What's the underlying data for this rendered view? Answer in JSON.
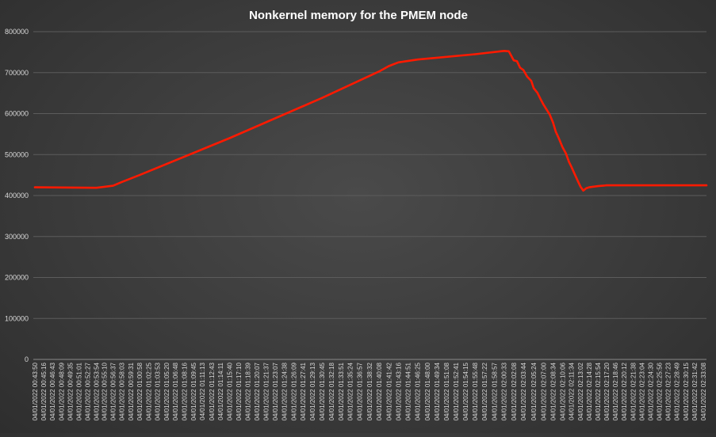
{
  "chart_data": {
    "type": "line",
    "title": "Nonkernel memory for the PMEM node",
    "xlabel": "",
    "ylabel": "",
    "ylim": [
      0,
      800000
    ],
    "y_ticks": [
      0,
      100000,
      200000,
      300000,
      400000,
      500000,
      600000,
      700000,
      800000
    ],
    "y_tick_labels": [
      "0",
      "100000",
      "200000",
      "300000",
      "400000",
      "500000",
      "600000",
      "700000",
      "800000"
    ],
    "x_tick_labels": [
      "04/01/2022 00:43:50",
      "04/01/2022 00:45:16",
      "04/01/2022 00:46:43",
      "04/01/2022 00:48:09",
      "04/01/2022 00:49:35",
      "04/01/2022 00:51:01",
      "04/01/2022 00:52:27",
      "04/01/2022 00:53:54",
      "04/01/2022 00:55:10",
      "04/01/2022 00:56:37",
      "04/01/2022 00:58:03",
      "04/01/2022 00:59:31",
      "04/01/2022 01:00:58",
      "04/01/2022 01:02:25",
      "04/01/2022 01:03:53",
      "04/01/2022 01:05:20",
      "04/01/2022 01:06:48",
      "04/01/2022 01:08:16",
      "04/01/2022 01:09:45",
      "04/01/2022 01:11:13",
      "04/01/2022 01:12:43",
      "04/01/2022 01:14:11",
      "04/01/2022 01:15:40",
      "04/01/2022 01:17:10",
      "04/01/2022 01:18:39",
      "04/01/2022 01:20:07",
      "04/01/2022 01:21:37",
      "04/01/2022 01:23:07",
      "04/01/2022 01:24:38",
      "04/01/2022 01:26:09",
      "04/01/2022 01:27:41",
      "04/01/2022 01:29:13",
      "04/01/2022 01:30:45",
      "04/01/2022 01:32:18",
      "04/01/2022 01:33:51",
      "04/01/2022 01:35:24",
      "04/01/2022 01:36:57",
      "04/01/2022 01:38:32",
      "04/01/2022 01:40:08",
      "04/01/2022 01:41:42",
      "04/01/2022 01:43:16",
      "04/01/2022 01:44:51",
      "04/01/2022 01:46:25",
      "04/01/2022 01:48:00",
      "04/01/2022 01:49:34",
      "04/01/2022 01:51:08",
      "04/01/2022 01:52:41",
      "04/01/2022 01:54:15",
      "04/01/2022 01:55:48",
      "04/01/2022 01:57:22",
      "04/01/2022 01:58:57",
      "04/01/2022 02:00:33",
      "04/01/2022 02:02:08",
      "04/01/2022 02:03:44",
      "04/01/2022 02:05:24",
      "04/01/2022 02:07:00",
      "04/01/2022 02:08:34",
      "04/01/2022 02:10:06",
      "04/01/2022 02:11:34",
      "04/01/2022 02:13:02",
      "04/01/2022 02:14:28",
      "04/01/2022 02:15:54",
      "04/01/2022 02:17:20",
      "04/01/2022 02:18:46",
      "04/01/2022 02:20:12",
      "04/01/2022 02:21:38",
      "04/01/2022 02:23:04",
      "04/01/2022 02:24:30",
      "04/01/2022 02:25:56",
      "04/01/2022 02:27:23",
      "04/01/2022 02:28:49",
      "04/01/2022 02:30:15",
      "04/01/2022 02:31:42",
      "04/01/2022 02:33:08"
    ],
    "series": [
      {
        "color": "#ff1a00",
        "points": [
          [
            "04/01/2022 00:43:50",
            420000
          ],
          [
            "04/01/2022 00:53:54",
            419000
          ],
          [
            "04/01/2022 00:56:37",
            424000
          ],
          [
            "04/01/2022 00:58:03",
            433000
          ],
          [
            "04/01/2022 01:00:58",
            450000
          ],
          [
            "04/01/2022 01:15:40",
            540000
          ],
          [
            "04/01/2022 01:30:45",
            638000
          ],
          [
            "04/01/2022 01:40:08",
            703000
          ],
          [
            "04/01/2022 01:41:42",
            716000
          ],
          [
            "04/01/2022 01:43:16",
            725000
          ],
          [
            "04/01/2022 01:46:25",
            732000
          ],
          [
            "04/01/2022 01:55:48",
            745000
          ],
          [
            "04/01/2022 02:00:33",
            753000
          ],
          [
            "04/01/2022 02:01:20",
            752000
          ],
          [
            "04/01/2022 02:02:08",
            730000
          ],
          [
            "04/01/2022 02:02:40",
            728000
          ],
          [
            "04/01/2022 02:03:10",
            712000
          ],
          [
            "04/01/2022 02:03:44",
            706000
          ],
          [
            "04/01/2022 02:04:20",
            690000
          ],
          [
            "04/01/2022 02:05:00",
            680000
          ],
          [
            "04/01/2022 02:05:24",
            662000
          ],
          [
            "04/01/2022 02:06:00",
            651000
          ],
          [
            "04/01/2022 02:06:30",
            636000
          ],
          [
            "04/01/2022 02:07:00",
            622000
          ],
          [
            "04/01/2022 02:07:30",
            610000
          ],
          [
            "04/01/2022 02:08:00",
            598000
          ],
          [
            "04/01/2022 02:08:34",
            578000
          ],
          [
            "04/01/2022 02:09:00",
            556000
          ],
          [
            "04/01/2022 02:09:30",
            540000
          ],
          [
            "04/01/2022 02:10:06",
            518000
          ],
          [
            "04/01/2022 02:10:40",
            503000
          ],
          [
            "04/01/2022 02:11:10",
            482000
          ],
          [
            "04/01/2022 02:11:34",
            470000
          ],
          [
            "04/01/2022 02:12:10",
            450000
          ],
          [
            "04/01/2022 02:12:40",
            434000
          ],
          [
            "04/01/2022 02:13:02",
            422000
          ],
          [
            "04/01/2022 02:13:30",
            412000
          ],
          [
            "04/01/2022 02:14:00",
            418000
          ],
          [
            "04/01/2022 02:14:28",
            420000
          ],
          [
            "04/01/2022 02:15:54",
            423000
          ],
          [
            "04/01/2022 02:17:20",
            425000
          ],
          [
            "04/01/2022 02:24:30",
            425000
          ],
          [
            "04/01/2022 02:33:08",
            425000
          ],
          [
            "04/01/2022 02:34:30",
            425000
          ]
        ]
      }
    ],
    "grid": true,
    "legend": "none"
  }
}
